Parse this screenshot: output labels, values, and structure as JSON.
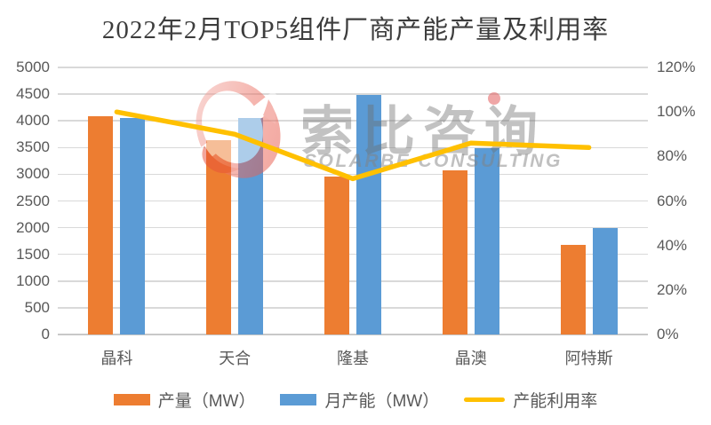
{
  "title": "2022年2月TOP5组件厂商产能产量及利用率",
  "watermark": {
    "cn": "索比咨询",
    "en": "SOLARBE CONSULTING"
  },
  "colors": {
    "output_bar": "#ED7D31",
    "capacity_bar": "#5B9BD5",
    "utilization_line": "#FFC000",
    "axis_text": "#595959",
    "gridline": "#D9D9D9",
    "title_text": "#3D3D3D",
    "watermark_red": "#E74C3C"
  },
  "legend": {
    "items": [
      {
        "label": "产量（MW）",
        "swatch": "rect-orange"
      },
      {
        "label": "月产能（MW）",
        "swatch": "rect-blue"
      },
      {
        "label": "产能利用率",
        "swatch": "line-yellow"
      }
    ]
  },
  "chart_data": {
    "type": "bar",
    "subtype": "combo-bar-line",
    "title": "2022年2月TOP5组件厂商产能产量及利用率",
    "categories": [
      "晶科",
      "天合",
      "隆基",
      "晶澳",
      "阿特斯"
    ],
    "series": [
      {
        "name": "产量（MW）",
        "type": "bar",
        "color": "#ED7D31",
        "values": [
          4090,
          3630,
          2960,
          3070,
          1670
        ]
      },
      {
        "name": "月产能（MW）",
        "type": "bar",
        "color": "#5B9BD5",
        "values": [
          4050,
          4060,
          4490,
          3490,
          2000
        ]
      },
      {
        "name": "产能利用率",
        "type": "line",
        "color": "#FFC000",
        "axis": "right",
        "values_percent": [
          100,
          90,
          70,
          86,
          84
        ]
      }
    ],
    "left_axis": {
      "min": 0,
      "max": 5000,
      "step": 500,
      "ticks": [
        "0",
        "500",
        "1000",
        "1500",
        "2000",
        "2500",
        "3000",
        "3500",
        "4000",
        "4500",
        "5000"
      ]
    },
    "right_axis": {
      "min": 0,
      "max": 120,
      "step": 20,
      "ticks": [
        "0%",
        "20%",
        "40%",
        "60%",
        "80%",
        "100%",
        "120%"
      ]
    },
    "grid": true,
    "legend_position": "bottom"
  }
}
